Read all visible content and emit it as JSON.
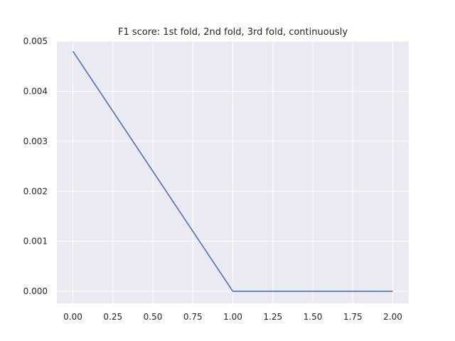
{
  "chart_data": {
    "type": "line",
    "title": "F1 score: 1st fold, 2nd fold, 3rd fold, continuously",
    "xlabel": "",
    "ylabel": "",
    "x": [
      0,
      1,
      2
    ],
    "series": [
      {
        "values": [
          0.0048,
          0.0,
          0.0
        ]
      }
    ],
    "xlim": [
      -0.1,
      2.1
    ],
    "ylim": [
      -0.00024,
      0.005
    ],
    "x_ticks": [
      0.0,
      0.25,
      0.5,
      0.75,
      1.0,
      1.25,
      1.5,
      1.75,
      2.0
    ],
    "x_tick_labels": [
      "0.00",
      "0.25",
      "0.50",
      "0.75",
      "1.00",
      "1.25",
      "1.50",
      "1.75",
      "2.00"
    ],
    "y_ticks": [
      0.0,
      0.001,
      0.002,
      0.003,
      0.004,
      0.005
    ],
    "y_tick_labels": [
      "0.000",
      "0.001",
      "0.002",
      "0.003",
      "0.004",
      "0.005"
    ],
    "grid": true,
    "colors": {
      "background": "#eaeaf2",
      "grid": "#ffffff",
      "line": "#4c72b0"
    }
  }
}
